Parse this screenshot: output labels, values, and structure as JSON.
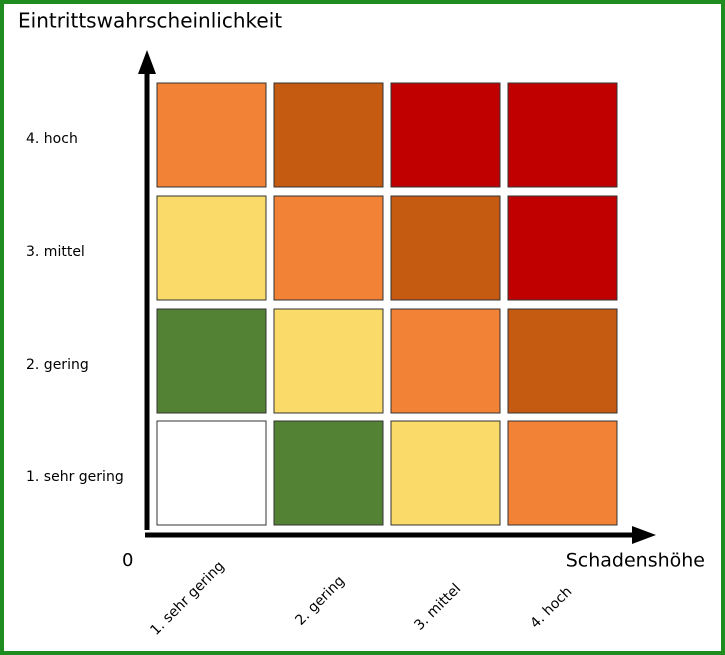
{
  "title": "Eintrittswahrscheinlichkeit",
  "x_axis_title": "Schadenshöhe",
  "origin_label": "0",
  "y_labels": [
    "4. hoch",
    "3. mittel",
    "2. gering",
    "1. sehr gering"
  ],
  "x_labels": [
    "1. sehr gering",
    "2. gering",
    "3. mittel",
    "4. hoch"
  ],
  "cell_colors": [
    [
      "#f28235",
      "#c55a11",
      "#c00000",
      "#c00000"
    ],
    [
      "#fadb6a",
      "#f28235",
      "#c55a11",
      "#c00000"
    ],
    [
      "#548235",
      "#fadb6a",
      "#f28235",
      "#c55a11"
    ],
    [
      "#ffffff",
      "#548235",
      "#fadb6a",
      "#f28235"
    ]
  ]
}
